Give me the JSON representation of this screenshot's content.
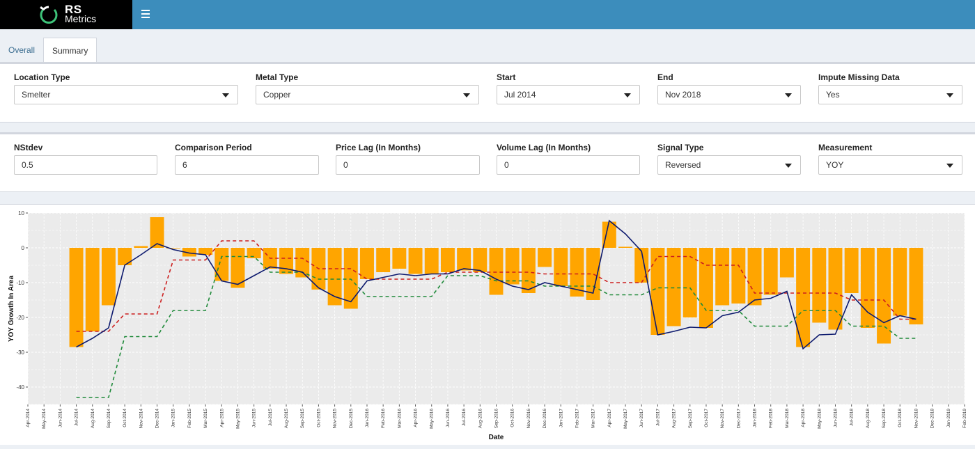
{
  "brand": {
    "line1": "RS",
    "line2": "Metrics",
    "icon": "satellite-logo-icon"
  },
  "header": {
    "menu_icon": "hamburger-menu-icon"
  },
  "tabs": [
    {
      "label": "Overall"
    },
    {
      "label": "Summary",
      "active": true
    }
  ],
  "filters": {
    "location_type": {
      "label": "Location Type",
      "value": "Smelter"
    },
    "metal_type": {
      "label": "Metal Type",
      "value": "Copper"
    },
    "start": {
      "label": "Start",
      "value": "Jul 2014"
    },
    "end": {
      "label": "End",
      "value": "Nov 2018"
    },
    "impute": {
      "label": "Impute Missing Data",
      "value": "Yes"
    }
  },
  "params": {
    "nstdev": {
      "label": "NStdev",
      "value": "0.5"
    },
    "comparison_period": {
      "label": "Comparison Period",
      "value": "6"
    },
    "price_lag": {
      "label": "Price Lag (In Months)",
      "value": "0"
    },
    "volume_lag": {
      "label": "Volume Lag (In Months)",
      "value": "0"
    },
    "signal_type": {
      "label": "Signal Type",
      "value": "Reversed"
    },
    "measurement": {
      "label": "Measurement",
      "value": "YOY"
    }
  },
  "colors": {
    "bar": "#ffa500",
    "red_dashed": "#cc1f1f",
    "green_dashed": "#1f8a3a",
    "navy_line": "#0d1a6e"
  },
  "chart_data": {
    "type": "bar",
    "xlabel": "Date",
    "ylabel": "YOY Growth In Area",
    "ylim": [
      -45,
      10
    ],
    "yticks": [
      10,
      0,
      -10,
      -20,
      -30,
      -40
    ],
    "grid": true,
    "tick_labels": [
      "Apr-2014",
      "May-2014",
      "Jun-2014",
      "Jul-2014",
      "Aug-2014",
      "Sep-2014",
      "Oct-2014",
      "Nov-2014",
      "Dec-2014",
      "Jan-2015",
      "Feb-2015",
      "Mar-2015",
      "Apr-2015",
      "May-2015",
      "Jun-2015",
      "Jul-2015",
      "Aug-2015",
      "Sep-2015",
      "Oct-2015",
      "Nov-2015",
      "Dec-2015",
      "Jan-2016",
      "Feb-2016",
      "Mar-2016",
      "Apr-2016",
      "May-2016",
      "Jun-2016",
      "Jul-2016",
      "Aug-2016",
      "Sep-2016",
      "Oct-2016",
      "Nov-2016",
      "Dec-2016",
      "Jan-2017",
      "Feb-2017",
      "Mar-2017",
      "Apr-2017",
      "May-2017",
      "Jun-2017",
      "Jul-2017",
      "Aug-2017",
      "Sep-2017",
      "Oct-2017",
      "Nov-2017",
      "Dec-2017",
      "Jan-2018",
      "Feb-2018",
      "Mar-2018",
      "Apr-2018",
      "May-2018",
      "Jun-2018",
      "Jul-2018",
      "Aug-2018",
      "Sep-2018",
      "Oct-2018",
      "Nov-2018",
      "Dec-2018",
      "Jan-2019",
      "Feb-2019"
    ],
    "bar_months": [
      "Jul-2014",
      "Aug-2014",
      "Sep-2014",
      "Oct-2014",
      "Nov-2014",
      "Dec-2014",
      "Jan-2015",
      "Feb-2015",
      "Mar-2015",
      "Apr-2015",
      "May-2015",
      "Jun-2015",
      "Jul-2015",
      "Aug-2015",
      "Sep-2015",
      "Oct-2015",
      "Nov-2015",
      "Dec-2015",
      "Jan-2016",
      "Feb-2016",
      "Mar-2016",
      "Apr-2016",
      "May-2016",
      "Jun-2016",
      "Jul-2016",
      "Aug-2016",
      "Sep-2016",
      "Oct-2016",
      "Nov-2016",
      "Dec-2016",
      "Jan-2017",
      "Feb-2017",
      "Mar-2017",
      "Apr-2017",
      "May-2017",
      "Jun-2017",
      "Jul-2017",
      "Aug-2017",
      "Sep-2017",
      "Oct-2017",
      "Nov-2017",
      "Dec-2017",
      "Jan-2018",
      "Feb-2018",
      "Mar-2018",
      "Apr-2018",
      "May-2018",
      "Jun-2018",
      "Jul-2018",
      "Aug-2018",
      "Sep-2018",
      "Oct-2018",
      "Nov-2018"
    ],
    "series": [
      {
        "kind": "bar",
        "values": [
          -28.5,
          -24,
          -16.5,
          -5,
          0.5,
          8.8,
          0,
          -2.5,
          -2,
          -9.5,
          -11.5,
          -3,
          -6,
          -7.5,
          -8.5,
          -12,
          -16.5,
          -17.5,
          -9,
          -7,
          -6,
          -7.5,
          -7.5,
          -7,
          -6.5,
          -7,
          -13.5,
          -10.5,
          -13,
          -5.5,
          -11,
          -14,
          -15,
          7.5,
          0.3,
          -10,
          -25,
          -22.5,
          -20,
          -23,
          -16.5,
          -16,
          -16.5,
          -13.5,
          -8.5,
          -28.5,
          -21.5,
          -23.5,
          -13,
          -23,
          -27.5,
          -19.5,
          -22
        ]
      },
      {
        "kind": "dashed",
        "color": "red",
        "values": [
          -24,
          -24,
          -24,
          -19,
          -19,
          -19,
          -3.5,
          -3.5,
          -3.5,
          2,
          2,
          2,
          -3,
          -3,
          -3,
          -6,
          -6,
          -6,
          -9,
          -9,
          -9,
          -9,
          -9,
          -7,
          -7,
          -7,
          -7,
          -7,
          -7,
          -7.5,
          -7.5,
          -7.5,
          -7.5,
          -10,
          -10,
          -10,
          -2.5,
          -2.5,
          -2.5,
          -5,
          -5,
          -5,
          -13,
          -13,
          -13,
          -13,
          -13,
          -13,
          -15,
          -15,
          -15,
          -20.5,
          -20.5
        ]
      },
      {
        "kind": "dashed",
        "color": "green",
        "values": [
          -43,
          -43,
          -43,
          -25.5,
          -25.5,
          -25.5,
          -18,
          -18,
          -18,
          -2.5,
          -2.5,
          -2.5,
          -7,
          -7,
          -7,
          -9,
          -9,
          -9,
          -14,
          -14,
          -14,
          -14,
          -14,
          -8,
          -8,
          -8,
          -9.5,
          -9.5,
          -9.5,
          -11,
          -11,
          -11,
          -11,
          -13.5,
          -13.5,
          -13.5,
          -11.5,
          -11.5,
          -11.5,
          -18,
          -18,
          -18,
          -22.5,
          -22.5,
          -22.5,
          -18,
          -18,
          -18,
          -22.5,
          -22.5,
          -22.5,
          -26,
          -26
        ]
      },
      {
        "kind": "solid",
        "color": "navy",
        "values": [
          -28.5,
          -26,
          -23,
          -5,
          -2,
          1.2,
          -0.5,
          -1.5,
          -2,
          -9.5,
          -10.5,
          -8,
          -5.5,
          -6,
          -7,
          -11.5,
          -14,
          -15.5,
          -9.5,
          -8.5,
          -7.5,
          -8,
          -7.5,
          -7.5,
          -6,
          -6.5,
          -9,
          -11,
          -12,
          -10,
          -11,
          -12,
          -13,
          7.8,
          4,
          -1,
          -25,
          -24,
          -22.8,
          -23,
          -19.5,
          -18.5,
          -15,
          -14.5,
          -12.5,
          -29,
          -25,
          -24.8,
          -13.5,
          -18.5,
          -21.5,
          -19.5,
          -20.5
        ]
      }
    ]
  }
}
